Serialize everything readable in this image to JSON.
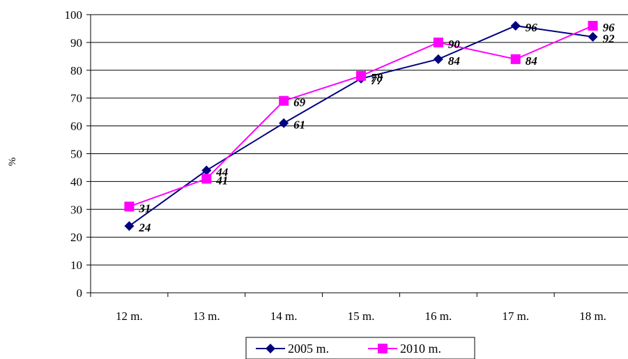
{
  "chart_data": {
    "type": "line",
    "title": "",
    "xlabel": "",
    "ylabel": "%",
    "categories": [
      "12 m.",
      "13 m.",
      "14 m.",
      "15 m.",
      "16 m.",
      "17 m.",
      "18 m."
    ],
    "ylim": [
      0,
      100
    ],
    "yticks": [
      0,
      10,
      20,
      30,
      40,
      50,
      60,
      70,
      80,
      90,
      100
    ],
    "grid": true,
    "legend_position": "bottom",
    "series": [
      {
        "name": "2005 m.",
        "values": [
          24,
          44,
          61,
          77,
          84,
          96,
          92
        ],
        "labels": [
          "24",
          "44",
          "61",
          "77",
          "84",
          "96",
          "92"
        ],
        "color": "#000080",
        "marker": "diamond"
      },
      {
        "name": "2010 m.",
        "values": [
          31,
          41,
          69,
          78,
          90,
          84,
          96
        ],
        "labels": [
          "31",
          "41",
          "69",
          "78",
          "90",
          "84",
          "96"
        ],
        "color": "#FF00FF",
        "marker": "square"
      }
    ]
  }
}
